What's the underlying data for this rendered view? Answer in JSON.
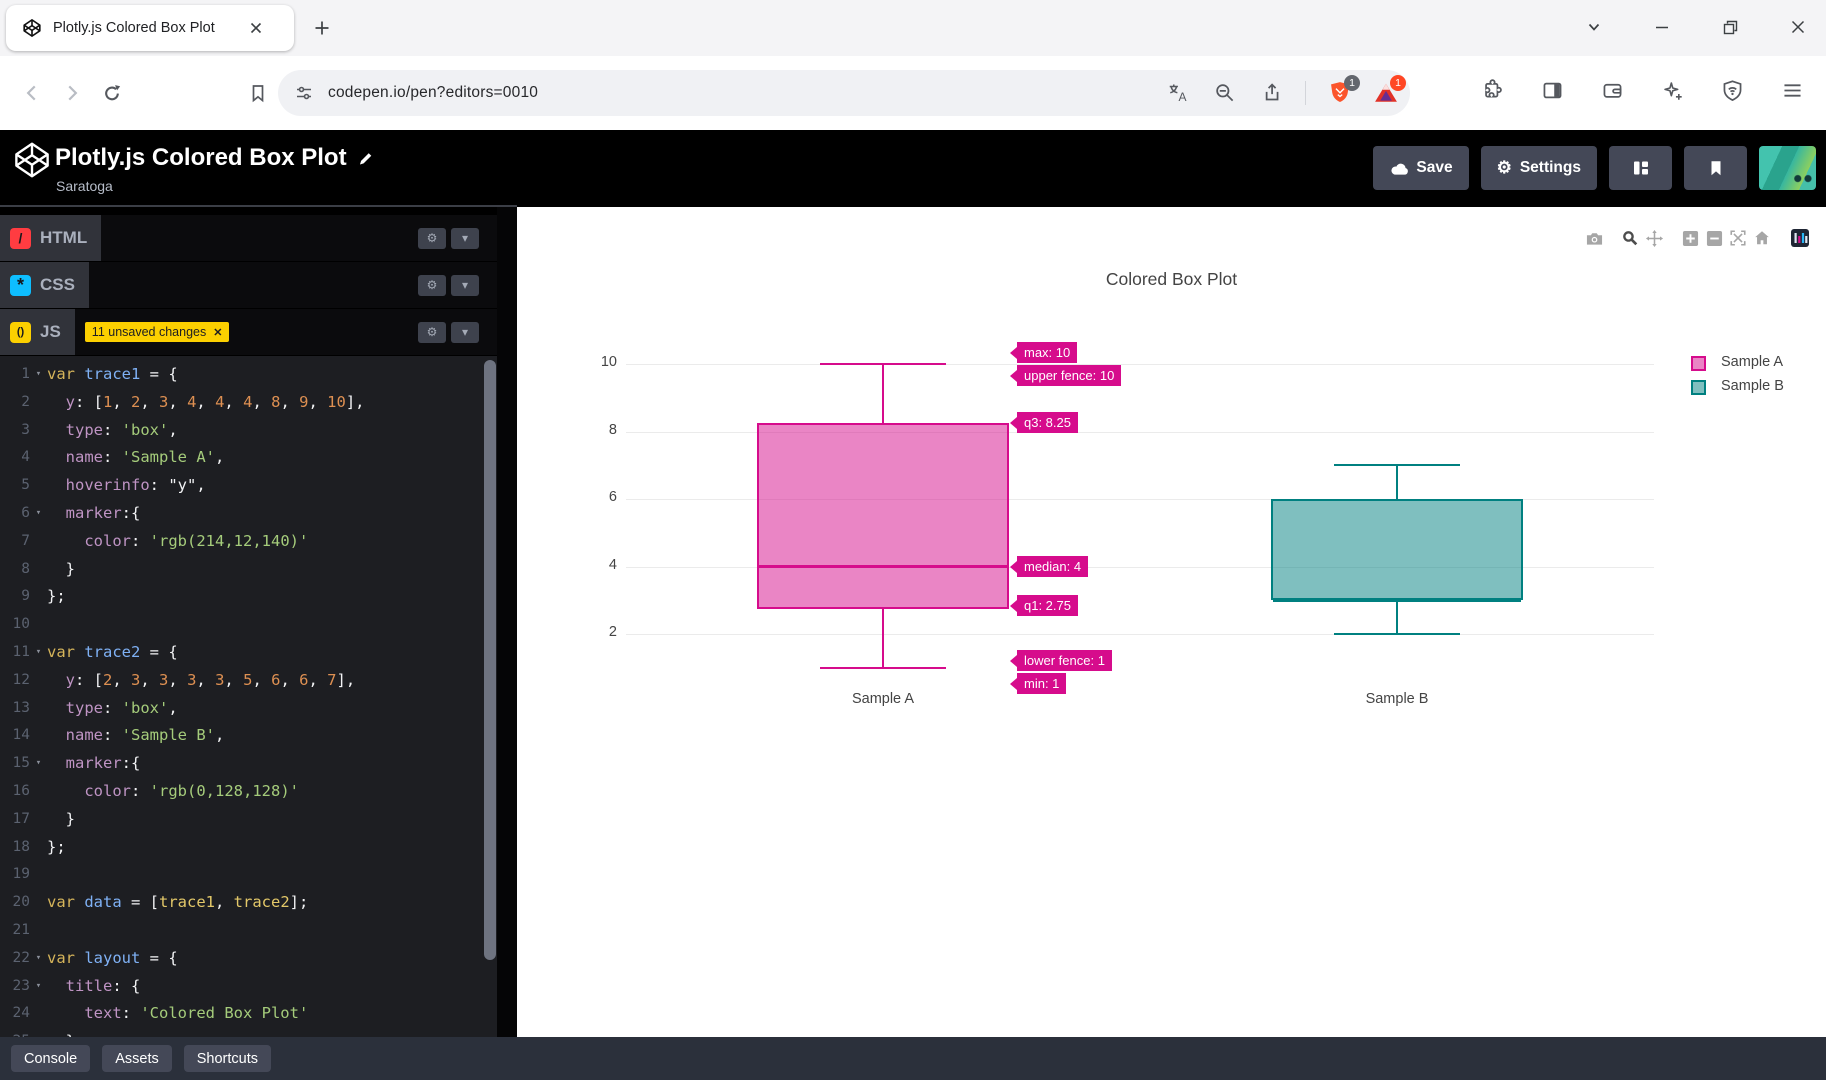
{
  "browser": {
    "tab_title": "Plotly.js Colored Box Plot",
    "url": "codepen.io/pen?editors=0010",
    "shield_badge": "1",
    "rewards_badge": "1"
  },
  "header": {
    "pen_title": "Plotly.js Colored Box Plot",
    "author": "Saratoga",
    "save_label": "Save",
    "settings_label": "Settings"
  },
  "editors": {
    "html_label": "HTML",
    "css_label": "CSS",
    "js_label": "JS",
    "html_icon_glyph": "/",
    "css_icon_glyph": "*",
    "js_icon_glyph": "()",
    "unsaved_badge": "11 unsaved changes"
  },
  "footer": {
    "console_label": "Console",
    "assets_label": "Assets",
    "shortcuts_label": "Shortcuts"
  },
  "code": {
    "fold_lines": [
      1,
      6,
      11,
      15,
      22,
      23
    ],
    "lines": [
      [
        [
          "k",
          "var"
        ],
        [
          "w",
          " "
        ],
        [
          "v",
          "trace1"
        ],
        [
          "w",
          " = {"
        ]
      ],
      [
        [
          "w",
          "  "
        ],
        [
          "p",
          "y"
        ],
        [
          "w",
          ": ["
        ],
        [
          "n",
          "1"
        ],
        [
          "w",
          ", "
        ],
        [
          "n",
          "2"
        ],
        [
          "w",
          ", "
        ],
        [
          "n",
          "3"
        ],
        [
          "w",
          ", "
        ],
        [
          "n",
          "4"
        ],
        [
          "w",
          ", "
        ],
        [
          "n",
          "4"
        ],
        [
          "w",
          ", "
        ],
        [
          "n",
          "4"
        ],
        [
          "w",
          ", "
        ],
        [
          "n",
          "8"
        ],
        [
          "w",
          ", "
        ],
        [
          "n",
          "9"
        ],
        [
          "w",
          ", "
        ],
        [
          "n",
          "10"
        ],
        [
          "w",
          "],"
        ]
      ],
      [
        [
          "w",
          "  "
        ],
        [
          "p",
          "type"
        ],
        [
          "w",
          ": "
        ],
        [
          "s",
          "'box'"
        ],
        [
          "w",
          ","
        ]
      ],
      [
        [
          "w",
          "  "
        ],
        [
          "p",
          "name"
        ],
        [
          "w",
          ": "
        ],
        [
          "s",
          "'Sample A'"
        ],
        [
          "w",
          ","
        ]
      ],
      [
        [
          "w",
          "  "
        ],
        [
          "p",
          "hoverinfo"
        ],
        [
          "w",
          ": \"y\","
        ]
      ],
      [
        [
          "w",
          "  "
        ],
        [
          "p",
          "marker"
        ],
        [
          "w",
          ":{"
        ]
      ],
      [
        [
          "w",
          "    "
        ],
        [
          "p",
          "color"
        ],
        [
          "w",
          ": "
        ],
        [
          "s",
          "'rgb(214,12,140)'"
        ]
      ],
      [
        [
          "w",
          "  }"
        ]
      ],
      [
        [
          "w",
          "};"
        ]
      ],
      [],
      [
        [
          "k",
          "var"
        ],
        [
          "w",
          " "
        ],
        [
          "v",
          "trace2"
        ],
        [
          "w",
          " = {"
        ]
      ],
      [
        [
          "w",
          "  "
        ],
        [
          "p",
          "y"
        ],
        [
          "w",
          ": ["
        ],
        [
          "n",
          "2"
        ],
        [
          "w",
          ", "
        ],
        [
          "n",
          "3"
        ],
        [
          "w",
          ", "
        ],
        [
          "n",
          "3"
        ],
        [
          "w",
          ", "
        ],
        [
          "n",
          "3"
        ],
        [
          "w",
          ", "
        ],
        [
          "n",
          "3"
        ],
        [
          "w",
          ", "
        ],
        [
          "n",
          "5"
        ],
        [
          "w",
          ", "
        ],
        [
          "n",
          "6"
        ],
        [
          "w",
          ", "
        ],
        [
          "n",
          "6"
        ],
        [
          "w",
          ", "
        ],
        [
          "n",
          "7"
        ],
        [
          "w",
          "],"
        ]
      ],
      [
        [
          "w",
          "  "
        ],
        [
          "p",
          "type"
        ],
        [
          "w",
          ": "
        ],
        [
          "s",
          "'box'"
        ],
        [
          "w",
          ","
        ]
      ],
      [
        [
          "w",
          "  "
        ],
        [
          "p",
          "name"
        ],
        [
          "w",
          ": "
        ],
        [
          "s",
          "'Sample B'"
        ],
        [
          "w",
          ","
        ]
      ],
      [
        [
          "w",
          "  "
        ],
        [
          "p",
          "marker"
        ],
        [
          "w",
          ":{"
        ]
      ],
      [
        [
          "w",
          "    "
        ],
        [
          "p",
          "color"
        ],
        [
          "w",
          ": "
        ],
        [
          "s",
          "'rgb(0,128,128)'"
        ]
      ],
      [
        [
          "w",
          "  }"
        ]
      ],
      [
        [
          "w",
          "};"
        ]
      ],
      [],
      [
        [
          "k",
          "var"
        ],
        [
          "w",
          " "
        ],
        [
          "v",
          "data"
        ],
        [
          "w",
          " = ["
        ],
        [
          "r",
          "trace1"
        ],
        [
          "w",
          ", "
        ],
        [
          "r",
          "trace2"
        ],
        [
          "w",
          "];"
        ]
      ],
      [],
      [
        [
          "k",
          "var"
        ],
        [
          "w",
          " "
        ],
        [
          "v",
          "layout"
        ],
        [
          "w",
          " = {"
        ]
      ],
      [
        [
          "w",
          "  "
        ],
        [
          "p",
          "title"
        ],
        [
          "w",
          ": {"
        ]
      ],
      [
        [
          "w",
          "    "
        ],
        [
          "p",
          "text"
        ],
        [
          "w",
          ": "
        ],
        [
          "s",
          "'Colored Box Plot'"
        ]
      ],
      [
        [
          "w",
          "  }"
        ]
      ]
    ]
  },
  "chart_data": {
    "type": "box",
    "title": "Colored Box Plot",
    "yticks": [
      2,
      4,
      6,
      8,
      10
    ],
    "ylim": [
      0.4,
      10.6
    ],
    "grid": true,
    "legend_position": "right",
    "categories": [
      "Sample A",
      "Sample B"
    ],
    "series": [
      {
        "name": "Sample A",
        "y": [
          1,
          2,
          3,
          4,
          4,
          4,
          8,
          9,
          10
        ],
        "color": "rgb(214,12,140)",
        "stats": {
          "min": 1,
          "lower_fence": 1,
          "q1": 2.75,
          "median": 4,
          "q3": 8.25,
          "upper_fence": 10,
          "max": 10
        }
      },
      {
        "name": "Sample B",
        "y": [
          2,
          3,
          3,
          3,
          3,
          5,
          6,
          6,
          7
        ],
        "color": "rgb(0,128,128)",
        "stats": {
          "min": 2,
          "lower_fence": 2,
          "q1": 3,
          "median": 3,
          "q3": 6,
          "upper_fence": 7,
          "max": 7
        }
      }
    ],
    "tooltips": [
      "max: 10",
      "upper fence: 10",
      "q3: 8.25",
      "median: 4",
      "q1: 2.75",
      "lower fence: 1",
      "min: 1"
    ]
  }
}
